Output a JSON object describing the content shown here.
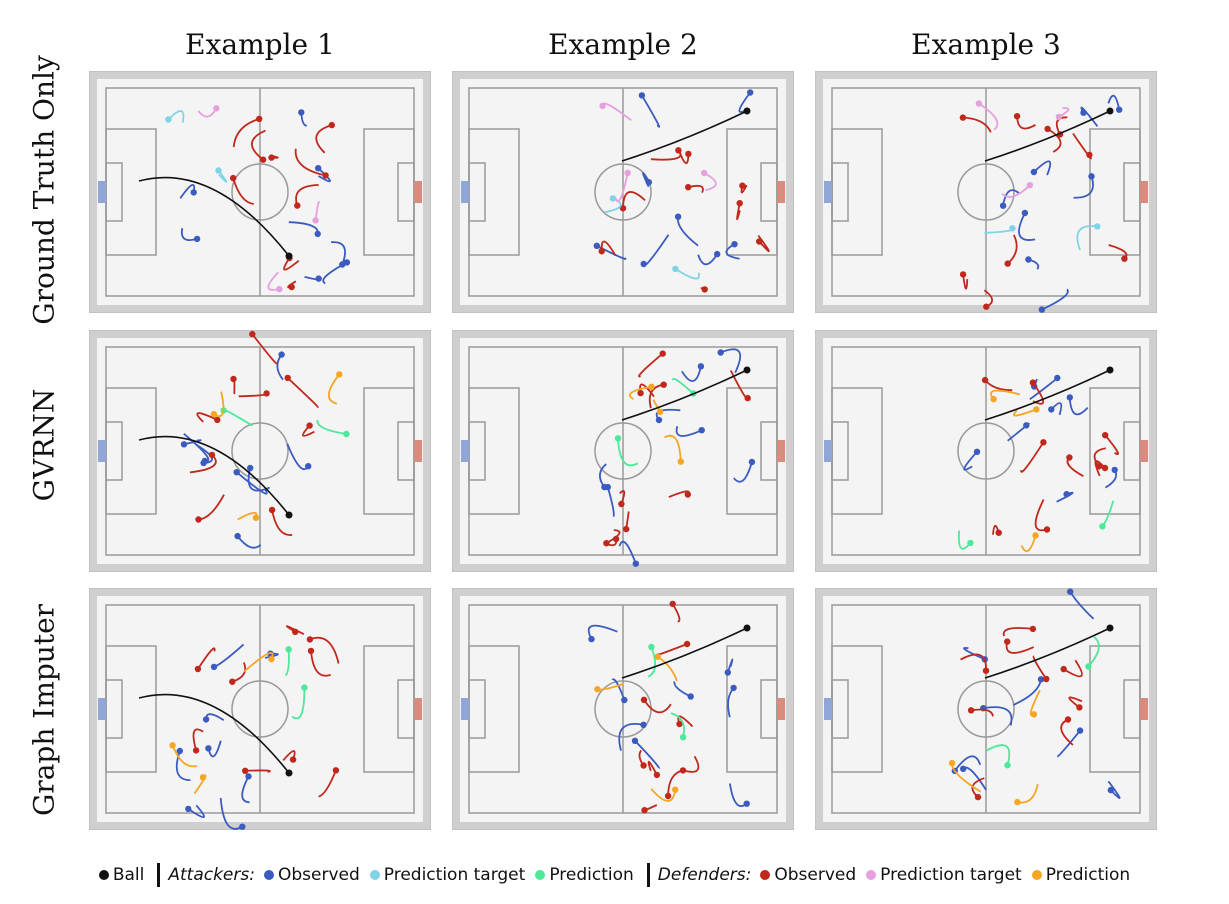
{
  "column_titles": [
    "Example 1",
    "Example 2",
    "Example 3"
  ],
  "row_titles": [
    "Ground Truth Only",
    "GVRNN",
    "Graph Imputer"
  ],
  "legend": {
    "ball": "Ball",
    "attackers_label": "Attackers:",
    "defenders_label": "Defenders:",
    "observed": "Observed",
    "prediction_target": "Prediction target",
    "prediction": "Prediction"
  },
  "colors": {
    "ball": "#111111",
    "attacker_observed": "#3b5bbf",
    "attacker_target": "#7fd3e6",
    "attacker_prediction": "#4de89a",
    "defender_observed": "#c0281c",
    "defender_target": "#e6a0de",
    "defender_prediction": "#f5a623",
    "pitch_line": "#999999",
    "left_goal": "#8fa6d6",
    "right_goal": "#d98b7e"
  }
}
